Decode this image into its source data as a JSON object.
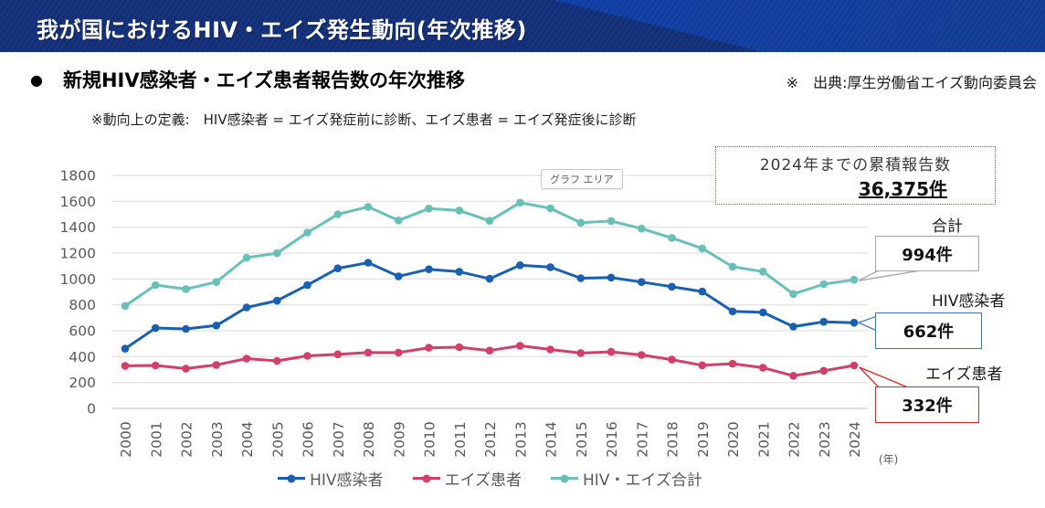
{
  "header": {
    "title": "我が国におけるHIV・エイズ発生動向(年次推移)"
  },
  "heading": {
    "bullet": "●",
    "title": "新規HIV感染者・エイズ患者報告数の年次推移",
    "source": "※　出典:厚生労働省エイズ動向委員会",
    "definition": "※動向上の定義:　HIV感染者 = エイズ発症前に診断、エイズ患者 = エイズ発症後に診断"
  },
  "chart_tooltip": "グラフ エリア",
  "annotation": {
    "line1": "2024年までの累積報告数",
    "line2": "36,375件"
  },
  "callouts": [
    {
      "label": "合計",
      "value": "994件",
      "color": "#a6a6a6"
    },
    {
      "label": "HIV感染者",
      "value": "662件",
      "color": "#4472c4"
    },
    {
      "label": "エイズ患者",
      "value": "332件",
      "color": "#e02525"
    }
  ],
  "axis_unit": "(年)",
  "legend": [
    {
      "label": "HIV感染者",
      "color": "#1a60b2"
    },
    {
      "label": "エイズ患者",
      "color": "#d23f68"
    },
    {
      "label": "HIV・エイズ合計",
      "color": "#68c0b8"
    }
  ],
  "chart_data": {
    "type": "line",
    "title": "新規HIV感染者・エイズ患者報告数の年次推移",
    "x": [
      2000,
      2001,
      2002,
      2003,
      2004,
      2005,
      2006,
      2007,
      2008,
      2009,
      2010,
      2011,
      2012,
      2013,
      2014,
      2015,
      2016,
      2017,
      2018,
      2019,
      2020,
      2021,
      2022,
      2023,
      2024
    ],
    "series": [
      {
        "name": "HIV感染者",
        "color": "#1a60b2",
        "values": [
          462,
          621,
          614,
          640,
          780,
          832,
          952,
          1082,
          1126,
          1021,
          1075,
          1056,
          1002,
          1106,
          1091,
          1006,
          1011,
          976,
          940,
          903,
          750,
          742,
          632,
          669,
          662
        ]
      },
      {
        "name": "エイズ患者",
        "color": "#d23f68",
        "values": [
          329,
          332,
          308,
          336,
          385,
          367,
          406,
          418,
          431,
          431,
          469,
          473,
          447,
          484,
          455,
          428,
          437,
          413,
          377,
          333,
          345,
          315,
          252,
          291,
          332
        ]
      },
      {
        "name": "HIV・エイズ合計",
        "color": "#68c0b8",
        "values": [
          791,
          953,
          922,
          976,
          1165,
          1199,
          1358,
          1500,
          1557,
          1452,
          1544,
          1529,
          1449,
          1590,
          1546,
          1434,
          1448,
          1389,
          1317,
          1236,
          1095,
          1057,
          884,
          960,
          994
        ]
      }
    ],
    "ylim": [
      0,
      1800
    ],
    "ytick_step": 200,
    "grid": true,
    "legend_position": "bottom",
    "xlabel_unit": "年",
    "cumulative_total_2024": 36375
  }
}
